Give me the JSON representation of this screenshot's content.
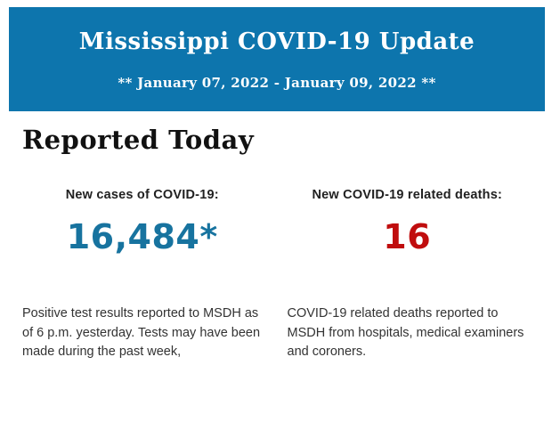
{
  "banner": {
    "title": "Mississippi COVID-19 Update",
    "subtitle": "** January 07, 2022 - January 09, 2022 **",
    "background_color": "#0d75ad",
    "text_color": "#ffffff"
  },
  "report": {
    "heading": "Reported Today",
    "cases": {
      "label": "New cases of COVID-19:",
      "value": "16,484*",
      "value_color": "#17739f",
      "description": "Positive test results reported to MSDH as of 6 p.m. yesterday. Tests may have been made during the past week,"
    },
    "deaths": {
      "label": "New COVID-19 related deaths:",
      "value": "16",
      "value_color": "#c00d0e",
      "description": "COVID-19 related deaths reported to MSDH from hospitals, medical examiners and coroners."
    }
  }
}
